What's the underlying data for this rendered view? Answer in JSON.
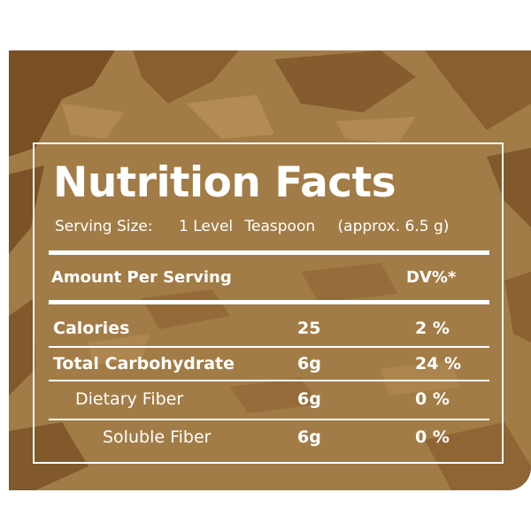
{
  "title": "Nutrition Facts",
  "serving": {
    "label": "Serving Size:",
    "amount": "1 Level",
    "unit": "Teaspoon",
    "approx": "(approx. 6.5 g)"
  },
  "header": {
    "amount_per_serving": "Amount Per Serving",
    "dv": "DV%*"
  },
  "rows": [
    {
      "name": "Calories",
      "amount": "25",
      "dv": "2 %"
    },
    {
      "name": "Total Carbohydrate",
      "amount": "6g",
      "dv": "24 %"
    },
    {
      "name": "Dietary Fiber",
      "amount": "6g",
      "dv": "0 %"
    },
    {
      "name": "Soluble Fiber",
      "amount": "6g",
      "dv": "0 %"
    }
  ],
  "colors": {
    "panel": "#a27c46",
    "dark_texture": "#6b4219",
    "light_texture": "#c39c63",
    "text": "#ffffff"
  }
}
